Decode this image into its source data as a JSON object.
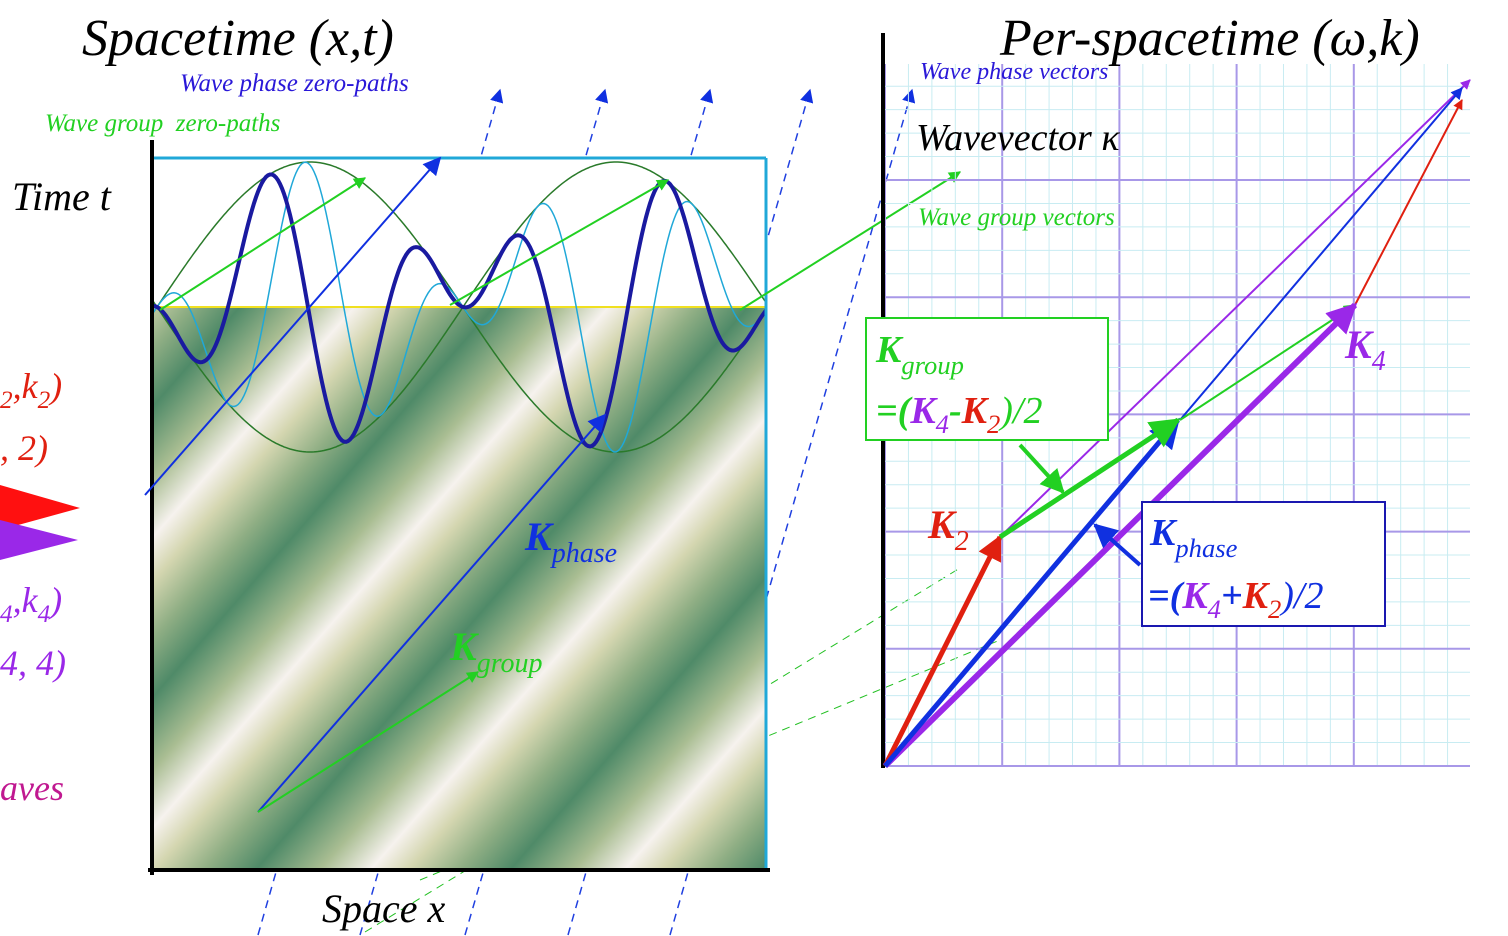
{
  "left_panel": {
    "title": "Spacetime (x,t)",
    "phase_paths_label": "Wave phase zero-paths",
    "group_paths_label": "Wave group  zero-paths",
    "y_axis_label": "Time t",
    "x_axis_label": "Space x",
    "k_phase": {
      "symbol": "K",
      "subscript": "phase"
    },
    "k_group": {
      "symbol": "K",
      "subscript": "group"
    }
  },
  "right_panel": {
    "title": "Per-spacetime (ω,k)",
    "phase_vectors_label": "Wave phase vectors",
    "wavevector_label": "Wavevector κ",
    "group_vectors_label": "Wave group vectors",
    "k2": {
      "symbol": "K",
      "subscript": "2"
    },
    "k4": {
      "symbol": "K",
      "subscript": "4"
    },
    "group_box": {
      "line1": {
        "symbol": "K",
        "subscript": "group"
      },
      "line2": [
        "=(",
        "K",
        "4",
        "-",
        "K",
        "2",
        ")/2"
      ]
    },
    "phase_box": {
      "line1": {
        "symbol": "K",
        "subscript": "phase"
      },
      "line2": [
        "=(",
        "K",
        "4",
        "+",
        "K",
        "2",
        ")/2"
      ]
    }
  },
  "cropped_legend": {
    "wave2_line1": [
      "2",
      ",k",
      "2",
      ")"
    ],
    "wave2_line2": ", 2)",
    "wave4_line1": [
      "4",
      ",k",
      "4",
      ")"
    ],
    "wave4_line2": "4, 4)",
    "footer": "aves"
  }
}
